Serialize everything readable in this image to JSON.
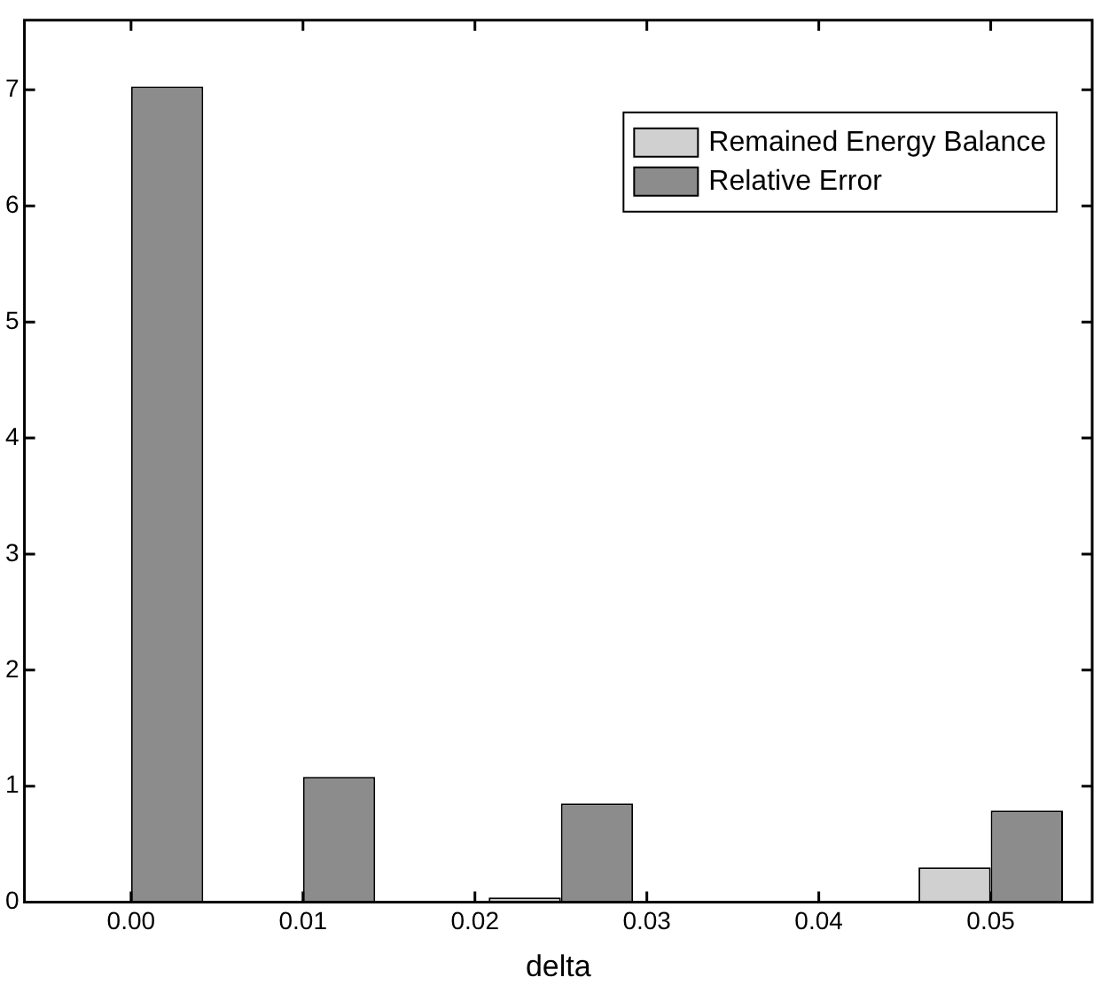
{
  "chart_data": {
    "type": "bar",
    "xlabel": "delta",
    "x": [
      0,
      0.01,
      0.025,
      0.05
    ],
    "series": [
      {
        "name": "Remained Energy Balance",
        "color": "#d0d0d0",
        "values": [
          0,
          0,
          0.04,
          0.3
        ]
      },
      {
        "name": "Relative Error",
        "color": "#8c8c8c",
        "values": [
          7.03,
          1.08,
          0.85,
          0.79
        ]
      }
    ],
    "xlim": [
      -0.0062,
      0.0559
    ],
    "xticks": [
      {
        "value": 0,
        "label": "0.00"
      },
      {
        "value": 0.01,
        "label": "0.01"
      },
      {
        "value": 0.02,
        "label": "0.02"
      },
      {
        "value": 0.03,
        "label": "0.03"
      },
      {
        "value": 0.04,
        "label": "0.04"
      },
      {
        "value": 0.05,
        "label": "0.05"
      }
    ],
    "ylim": [
      0,
      7.6
    ],
    "yticks": [
      0,
      1,
      2,
      3,
      4,
      5,
      6,
      7
    ],
    "grid": false,
    "legend": "top right"
  }
}
